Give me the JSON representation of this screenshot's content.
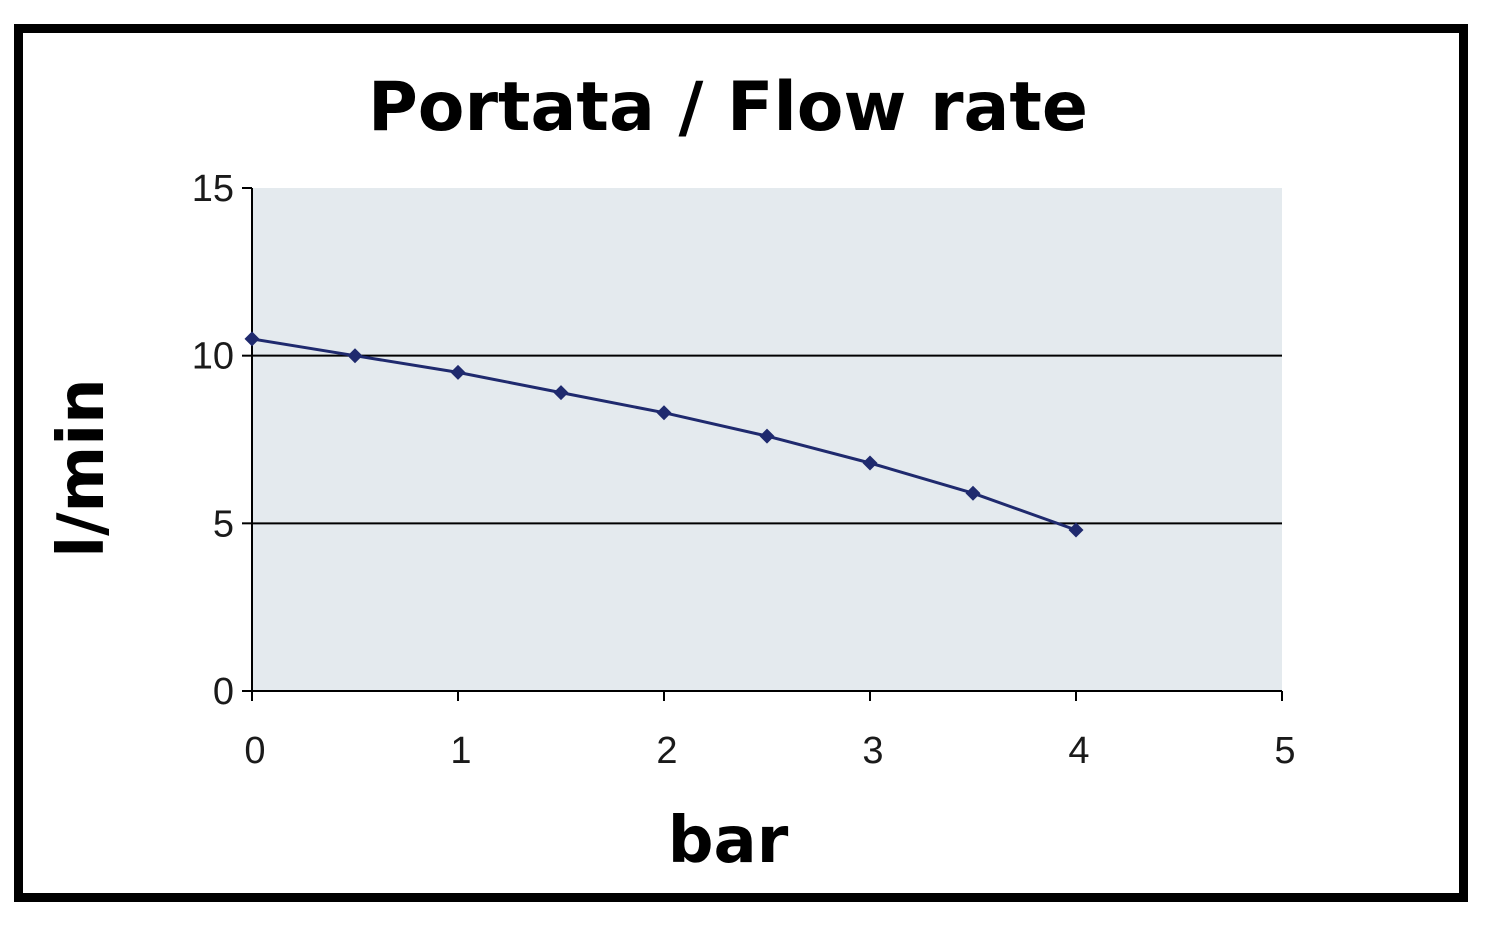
{
  "chart_data": {
    "type": "line",
    "title": "Portata / Flow rate",
    "xlabel": "bar",
    "ylabel": "l/min",
    "xlim": [
      0,
      5
    ],
    "ylim": [
      0,
      15
    ],
    "xticks": [
      "0",
      "1",
      "2",
      "3",
      "4",
      "5"
    ],
    "yticks": [
      "0",
      "5",
      "10",
      "15"
    ],
    "grid": "horizontal",
    "legend": "none",
    "plot_background": "#e4eaee",
    "series": [
      {
        "color": "#1f2a6e",
        "marker": "diamond",
        "x": [
          0,
          0.5,
          1,
          1.5,
          2,
          2.5,
          3,
          3.5,
          4
        ],
        "y": [
          10.5,
          10.0,
          9.5,
          8.9,
          8.3,
          7.6,
          6.8,
          5.9,
          4.8
        ]
      }
    ]
  }
}
